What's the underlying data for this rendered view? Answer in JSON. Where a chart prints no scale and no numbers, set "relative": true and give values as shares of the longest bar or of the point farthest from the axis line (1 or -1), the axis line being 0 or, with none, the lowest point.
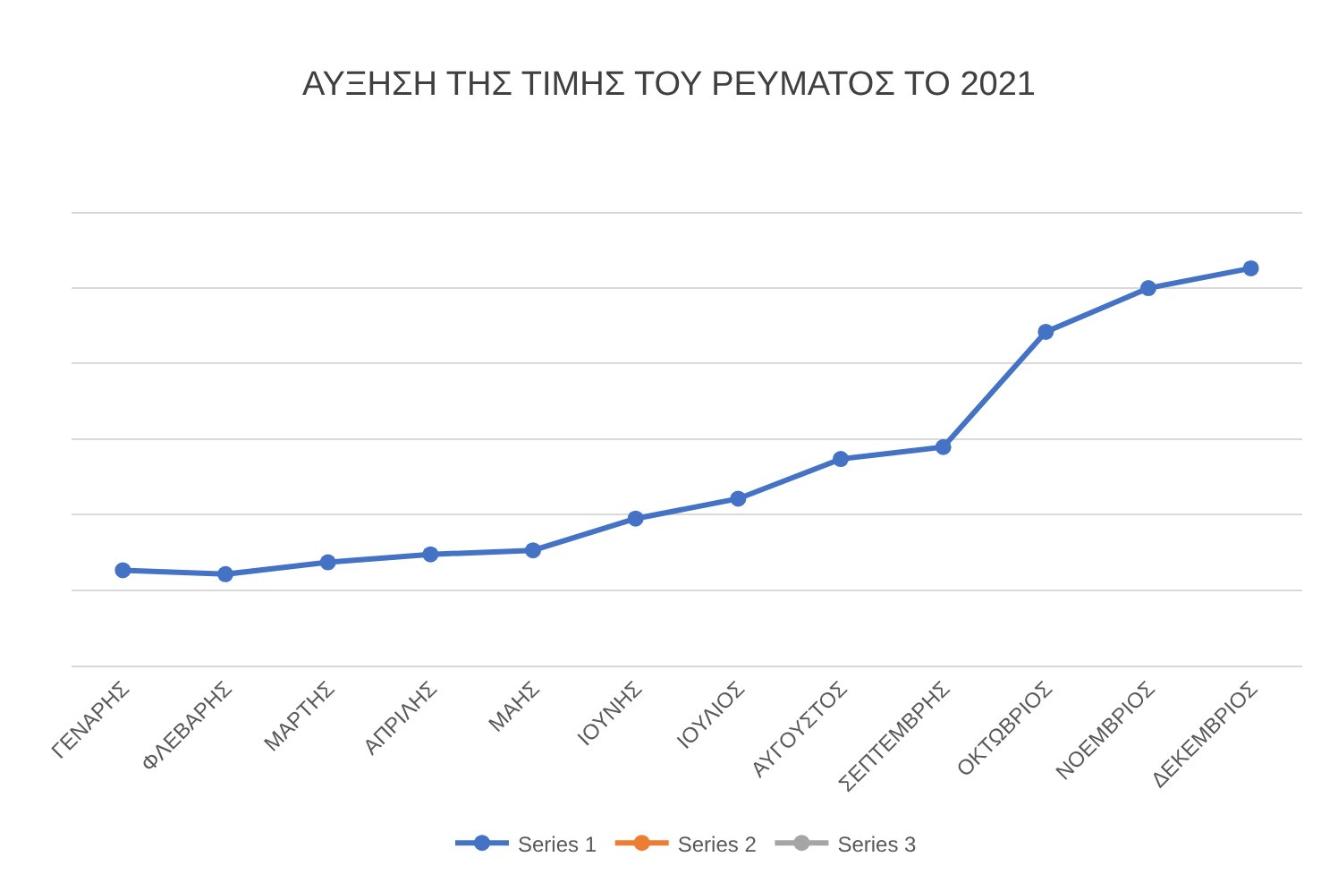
{
  "chart_data": {
    "type": "line",
    "title": "ΑΥΞΗΣΗ ΤΗΣ ΤΙΜΗΣ ΤΟΥ ΡΕΥΜΑΤΟΣ ΤΟ 2021",
    "relative": true,
    "categories": [
      "ΓΕΝΑΡΗΣ",
      "ΦΛΕΒΑΡΗΣ",
      "ΜΑΡΤΗΣ",
      "ΑΠΡΙΛΗΣ",
      "ΜΑΗΣ",
      "ΙΟΥΝΗΣ",
      "ΙΟΥΛΙΟΣ",
      "ΑΥΓΟΥΣΤΟΣ",
      "ΣΕΠΤΕΜΒΡΗΣ",
      "ΟΚΤΩΒΡΙΟΣ",
      "ΝΟΕΜΒΡΙΟΣ",
      "ΔΕΚΕΜΒΡΙΟΣ"
    ],
    "series": [
      {
        "name": "Series 1",
        "color": "#4472c4",
        "values": [
          0.24,
          0.23,
          0.26,
          0.28,
          0.29,
          0.37,
          0.42,
          0.52,
          0.55,
          0.84,
          0.95,
          1
        ]
      },
      {
        "name": "Series 2",
        "color": "#ed7d31",
        "values": [
          null,
          null,
          null,
          null,
          null,
          null,
          null,
          null,
          null,
          null,
          null,
          null
        ]
      },
      {
        "name": "Series 3",
        "color": "#a5a5a5",
        "values": [
          null,
          null,
          null,
          null,
          null,
          null,
          null,
          null,
          null,
          null,
          null,
          null
        ]
      }
    ],
    "grid": "y",
    "legend": "bottom",
    "marker": "circle",
    "line_style": "solid"
  }
}
